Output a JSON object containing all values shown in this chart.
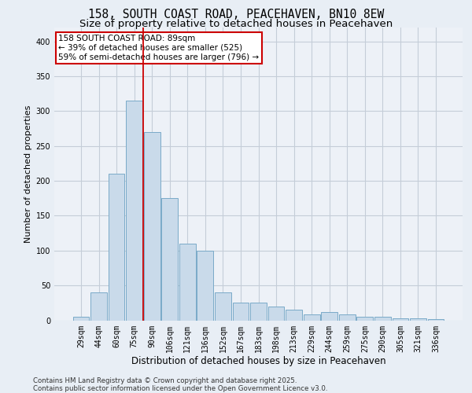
{
  "title1": "158, SOUTH COAST ROAD, PEACEHAVEN, BN10 8EW",
  "title2": "Size of property relative to detached houses in Peacehaven",
  "xlabel": "Distribution of detached houses by size in Peacehaven",
  "ylabel": "Number of detached properties",
  "categories": [
    "29sqm",
    "44sqm",
    "60sqm",
    "75sqm",
    "90sqm",
    "106sqm",
    "121sqm",
    "136sqm",
    "152sqm",
    "167sqm",
    "183sqm",
    "198sqm",
    "213sqm",
    "229sqm",
    "244sqm",
    "259sqm",
    "275sqm",
    "290sqm",
    "305sqm",
    "321sqm",
    "336sqm"
  ],
  "values": [
    5,
    40,
    210,
    315,
    270,
    175,
    110,
    100,
    40,
    25,
    25,
    20,
    15,
    8,
    12,
    8,
    5,
    5,
    3,
    3,
    2
  ],
  "bar_color": "#c9daea",
  "bar_edge_color": "#7aaac8",
  "red_line_x": 3.5,
  "annotation_text": "158 SOUTH COAST ROAD: 89sqm\n← 39% of detached houses are smaller (525)\n59% of semi-detached houses are larger (796) →",
  "annotation_box_color": "#ffffff",
  "annotation_box_edge": "#cc0000",
  "footer1": "Contains HM Land Registry data © Crown copyright and database right 2025.",
  "footer2": "Contains public sector information licensed under the Open Government Licence v3.0.",
  "bg_color": "#e8eef5",
  "plot_bg_color": "#edf1f7",
  "grid_color": "#c5cdd8",
  "ylim": [
    0,
    420
  ],
  "yticks": [
    0,
    50,
    100,
    150,
    200,
    250,
    300,
    350,
    400
  ],
  "title1_fontsize": 10.5,
  "title2_fontsize": 9.5,
  "xlabel_fontsize": 8.5,
  "ylabel_fontsize": 8,
  "tick_fontsize": 7,
  "annot_fontsize": 7.5,
  "footer_fontsize": 6.2
}
